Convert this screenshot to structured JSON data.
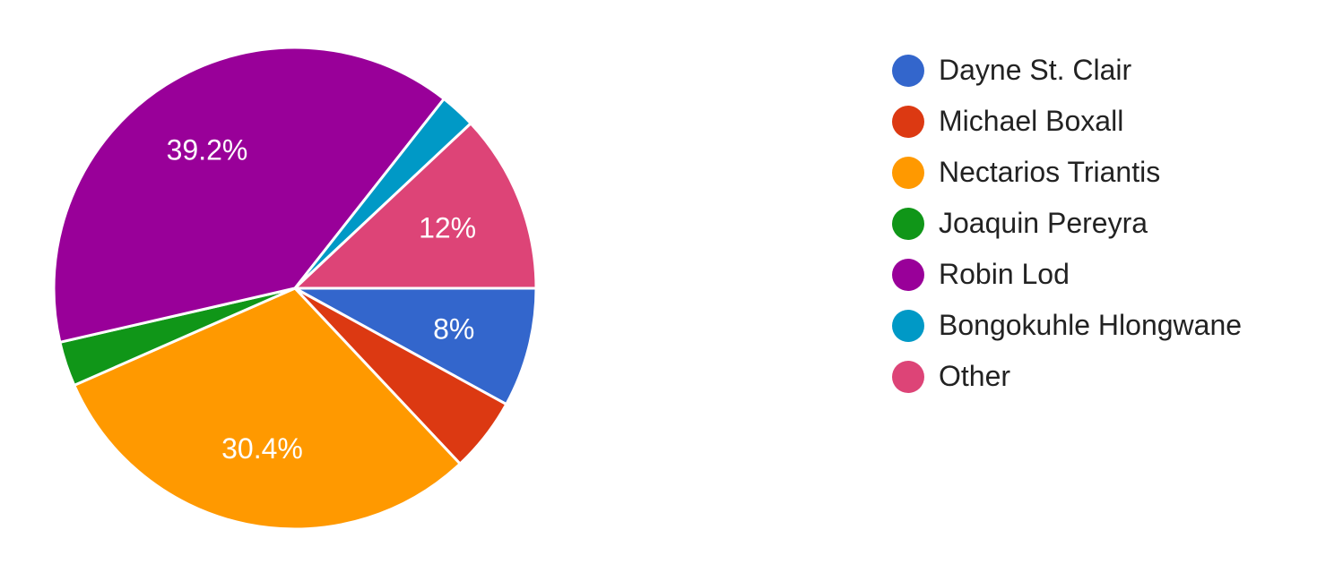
{
  "chart_data": {
    "type": "pie",
    "start": "3 o'clock",
    "direction": "clockwise",
    "slice_border_color": "#ffffff",
    "legend_position": "right",
    "slices": [
      {
        "label": "Dayne St. Clair",
        "value": 8.0,
        "data_label": "8%",
        "color": "#3366cc"
      },
      {
        "label": "Michael Boxall",
        "value": 5.0,
        "data_label": "",
        "color": "#dc3912"
      },
      {
        "label": "Nectarios Triantis",
        "value": 30.4,
        "data_label": "30.4%",
        "color": "#ff9900"
      },
      {
        "label": "Joaquin Pereyra",
        "value": 3.0,
        "data_label": "",
        "color": "#109618"
      },
      {
        "label": "Robin Lod",
        "value": 39.2,
        "data_label": "39.2%",
        "color": "#990099"
      },
      {
        "label": "Bongokuhle Hlongwane",
        "value": 2.4,
        "data_label": "",
        "color": "#0099c6"
      },
      {
        "label": "Other",
        "value": 12.0,
        "data_label": "12%",
        "color": "#dd4477"
      }
    ]
  }
}
